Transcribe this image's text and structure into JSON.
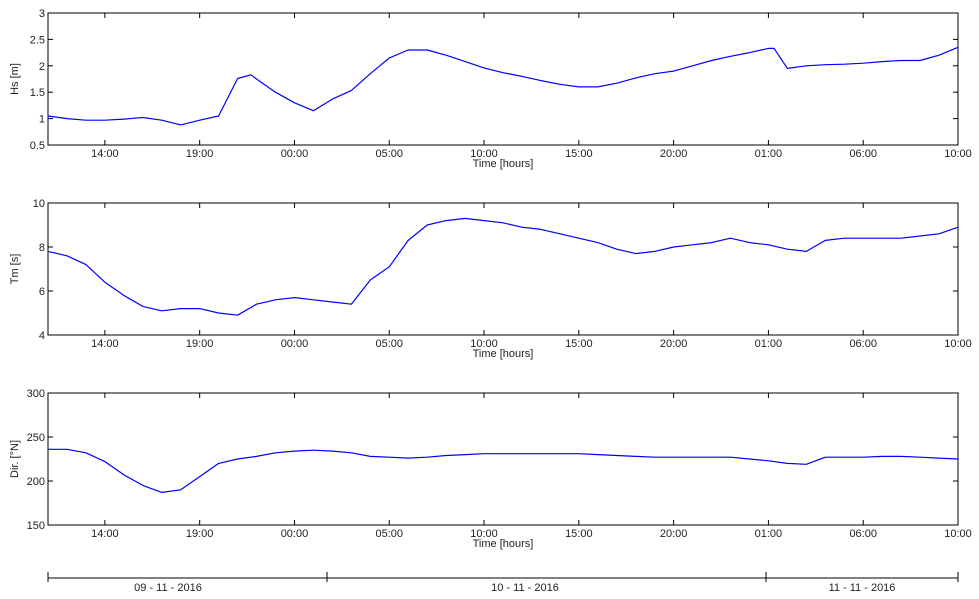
{
  "line_color": "#0000ff",
  "x_tick_labels": [
    "14:00",
    "19:00",
    "00:00",
    "05:00",
    "10:00",
    "15:00",
    "20:00",
    "01:00",
    "06:00",
    "10:00"
  ],
  "x_axis_label": "Time [hours]",
  "chart_data": [
    {
      "type": "line",
      "ylabel": "Hs [m]",
      "xlabel": "Time [hours]",
      "xlim": [
        0,
        48
      ],
      "ylim": [
        0.5,
        3
      ],
      "yticks": [
        0.5,
        1,
        1.5,
        2,
        2.5,
        3
      ],
      "ytick_labels": [
        "0.5",
        "1",
        "1.5",
        "2",
        "2.5",
        "3"
      ],
      "x": [
        0,
        1,
        2,
        3,
        4,
        5,
        6,
        7,
        8,
        9,
        10,
        10.7,
        11,
        12,
        13,
        14,
        15,
        16,
        17,
        18,
        19,
        20,
        21,
        22,
        23,
        24,
        25,
        26,
        27,
        28,
        29,
        30,
        31,
        32,
        33,
        34,
        35,
        36,
        37,
        38,
        38.3,
        39,
        40,
        41,
        42,
        43,
        44,
        45,
        46,
        47,
        48
      ],
      "series": [
        {
          "values": [
            1.05,
            1.0,
            0.97,
            0.97,
            0.99,
            1.02,
            0.97,
            0.88,
            0.97,
            1.05,
            1.76,
            1.83,
            1.75,
            1.5,
            1.3,
            1.15,
            1.37,
            1.53,
            1.85,
            2.15,
            2.3,
            2.3,
            2.2,
            2.08,
            1.96,
            1.87,
            1.8,
            1.72,
            1.65,
            1.6,
            1.6,
            1.67,
            1.77,
            1.85,
            1.9,
            2.0,
            2.1,
            2.18,
            2.25,
            2.33,
            2.33,
            1.95,
            2.0,
            2.02,
            2.03,
            2.05,
            2.08,
            2.1,
            2.1,
            2.2,
            2.35
          ]
        }
      ]
    },
    {
      "type": "line",
      "ylabel": "Tm [s]",
      "xlabel": "Time [hours]",
      "xlim": [
        0,
        48
      ],
      "ylim": [
        4,
        10
      ],
      "yticks": [
        4,
        6,
        8,
        10
      ],
      "ytick_labels": [
        "4",
        "6",
        "8",
        "10"
      ],
      "x": [
        0,
        1,
        2,
        3,
        4,
        5,
        6,
        7,
        8,
        9,
        10,
        11,
        12,
        13,
        14,
        15,
        16,
        17,
        18,
        19,
        20,
        21,
        22,
        23,
        24,
        25,
        26,
        27,
        28,
        29,
        30,
        31,
        32,
        33,
        34,
        35,
        36,
        37,
        38,
        39,
        40,
        41,
        42,
        43,
        44,
        45,
        46,
        47,
        48
      ],
      "series": [
        {
          "values": [
            7.8,
            7.6,
            7.2,
            6.4,
            5.8,
            5.3,
            5.1,
            5.2,
            5.2,
            5.0,
            4.9,
            5.4,
            5.6,
            5.7,
            5.6,
            5.5,
            5.4,
            6.5,
            7.1,
            8.3,
            9.0,
            9.2,
            9.3,
            9.2,
            9.1,
            8.9,
            8.8,
            8.6,
            8.4,
            8.2,
            7.9,
            7.7,
            7.8,
            8.0,
            8.1,
            8.2,
            8.4,
            8.2,
            8.1,
            7.9,
            7.8,
            8.3,
            8.4,
            8.4,
            8.4,
            8.4,
            8.5,
            8.6,
            8.9
          ]
        }
      ]
    },
    {
      "type": "line",
      "ylabel": "Dir. [°N]",
      "xlabel": "Time [hours]",
      "xlim": [
        0,
        48
      ],
      "ylim": [
        150,
        300
      ],
      "yticks": [
        150,
        200,
        250,
        300
      ],
      "ytick_labels": [
        "150",
        "200",
        "250",
        "300"
      ],
      "x": [
        0,
        1,
        2,
        3,
        4,
        5,
        6,
        7,
        8,
        9,
        10,
        11,
        12,
        13,
        14,
        15,
        16,
        17,
        18,
        19,
        20,
        21,
        22,
        23,
        24,
        25,
        26,
        27,
        28,
        29,
        30,
        31,
        32,
        33,
        34,
        35,
        36,
        37,
        38,
        39,
        40,
        41,
        42,
        43,
        44,
        45,
        46,
        47,
        48
      ],
      "series": [
        {
          "values": [
            236,
            236,
            232,
            222,
            207,
            195,
            187,
            190,
            205,
            220,
            225,
            228,
            232,
            234,
            235,
            234,
            232,
            228,
            227,
            226,
            227,
            229,
            230,
            231,
            231,
            231,
            231,
            231,
            231,
            230,
            229,
            228,
            227,
            227,
            227,
            227,
            227,
            225,
            223,
            220,
            219,
            227,
            227,
            227,
            228,
            228,
            227,
            226,
            225
          ]
        }
      ]
    }
  ],
  "date_labels": [
    "09 - 11 - 2016",
    "10 - 11 - 2016",
    "11 - 11 - 2016"
  ]
}
